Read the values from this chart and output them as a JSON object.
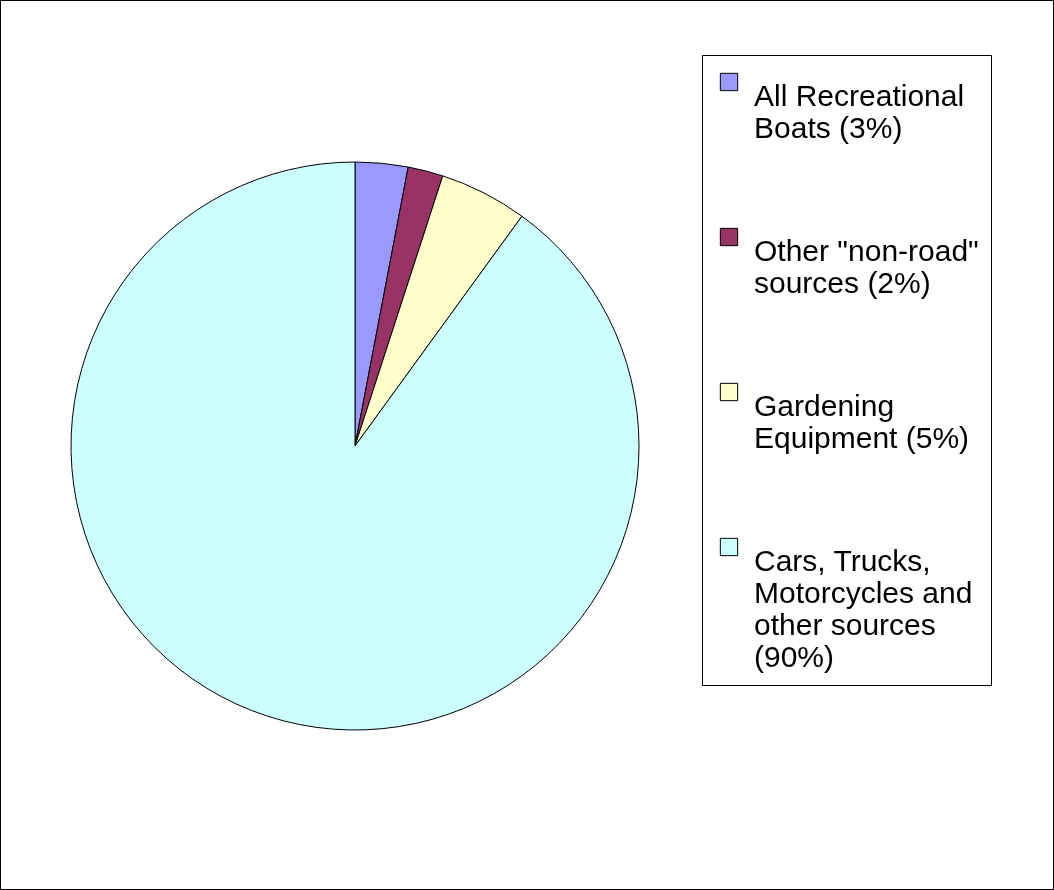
{
  "chart_data": {
    "type": "pie",
    "categories": [
      "All Recreational Boats (3%)",
      "Other \"non-road\" sources (2%)",
      "Gardening Equipment (5%)",
      "Cars, Trucks, Motorcycles and other sources (90%)"
    ],
    "values": [
      3,
      2,
      5,
      90
    ],
    "colors": [
      "#9999ff",
      "#993366",
      "#ffffcc",
      "#ccffff"
    ],
    "legend": "right"
  }
}
